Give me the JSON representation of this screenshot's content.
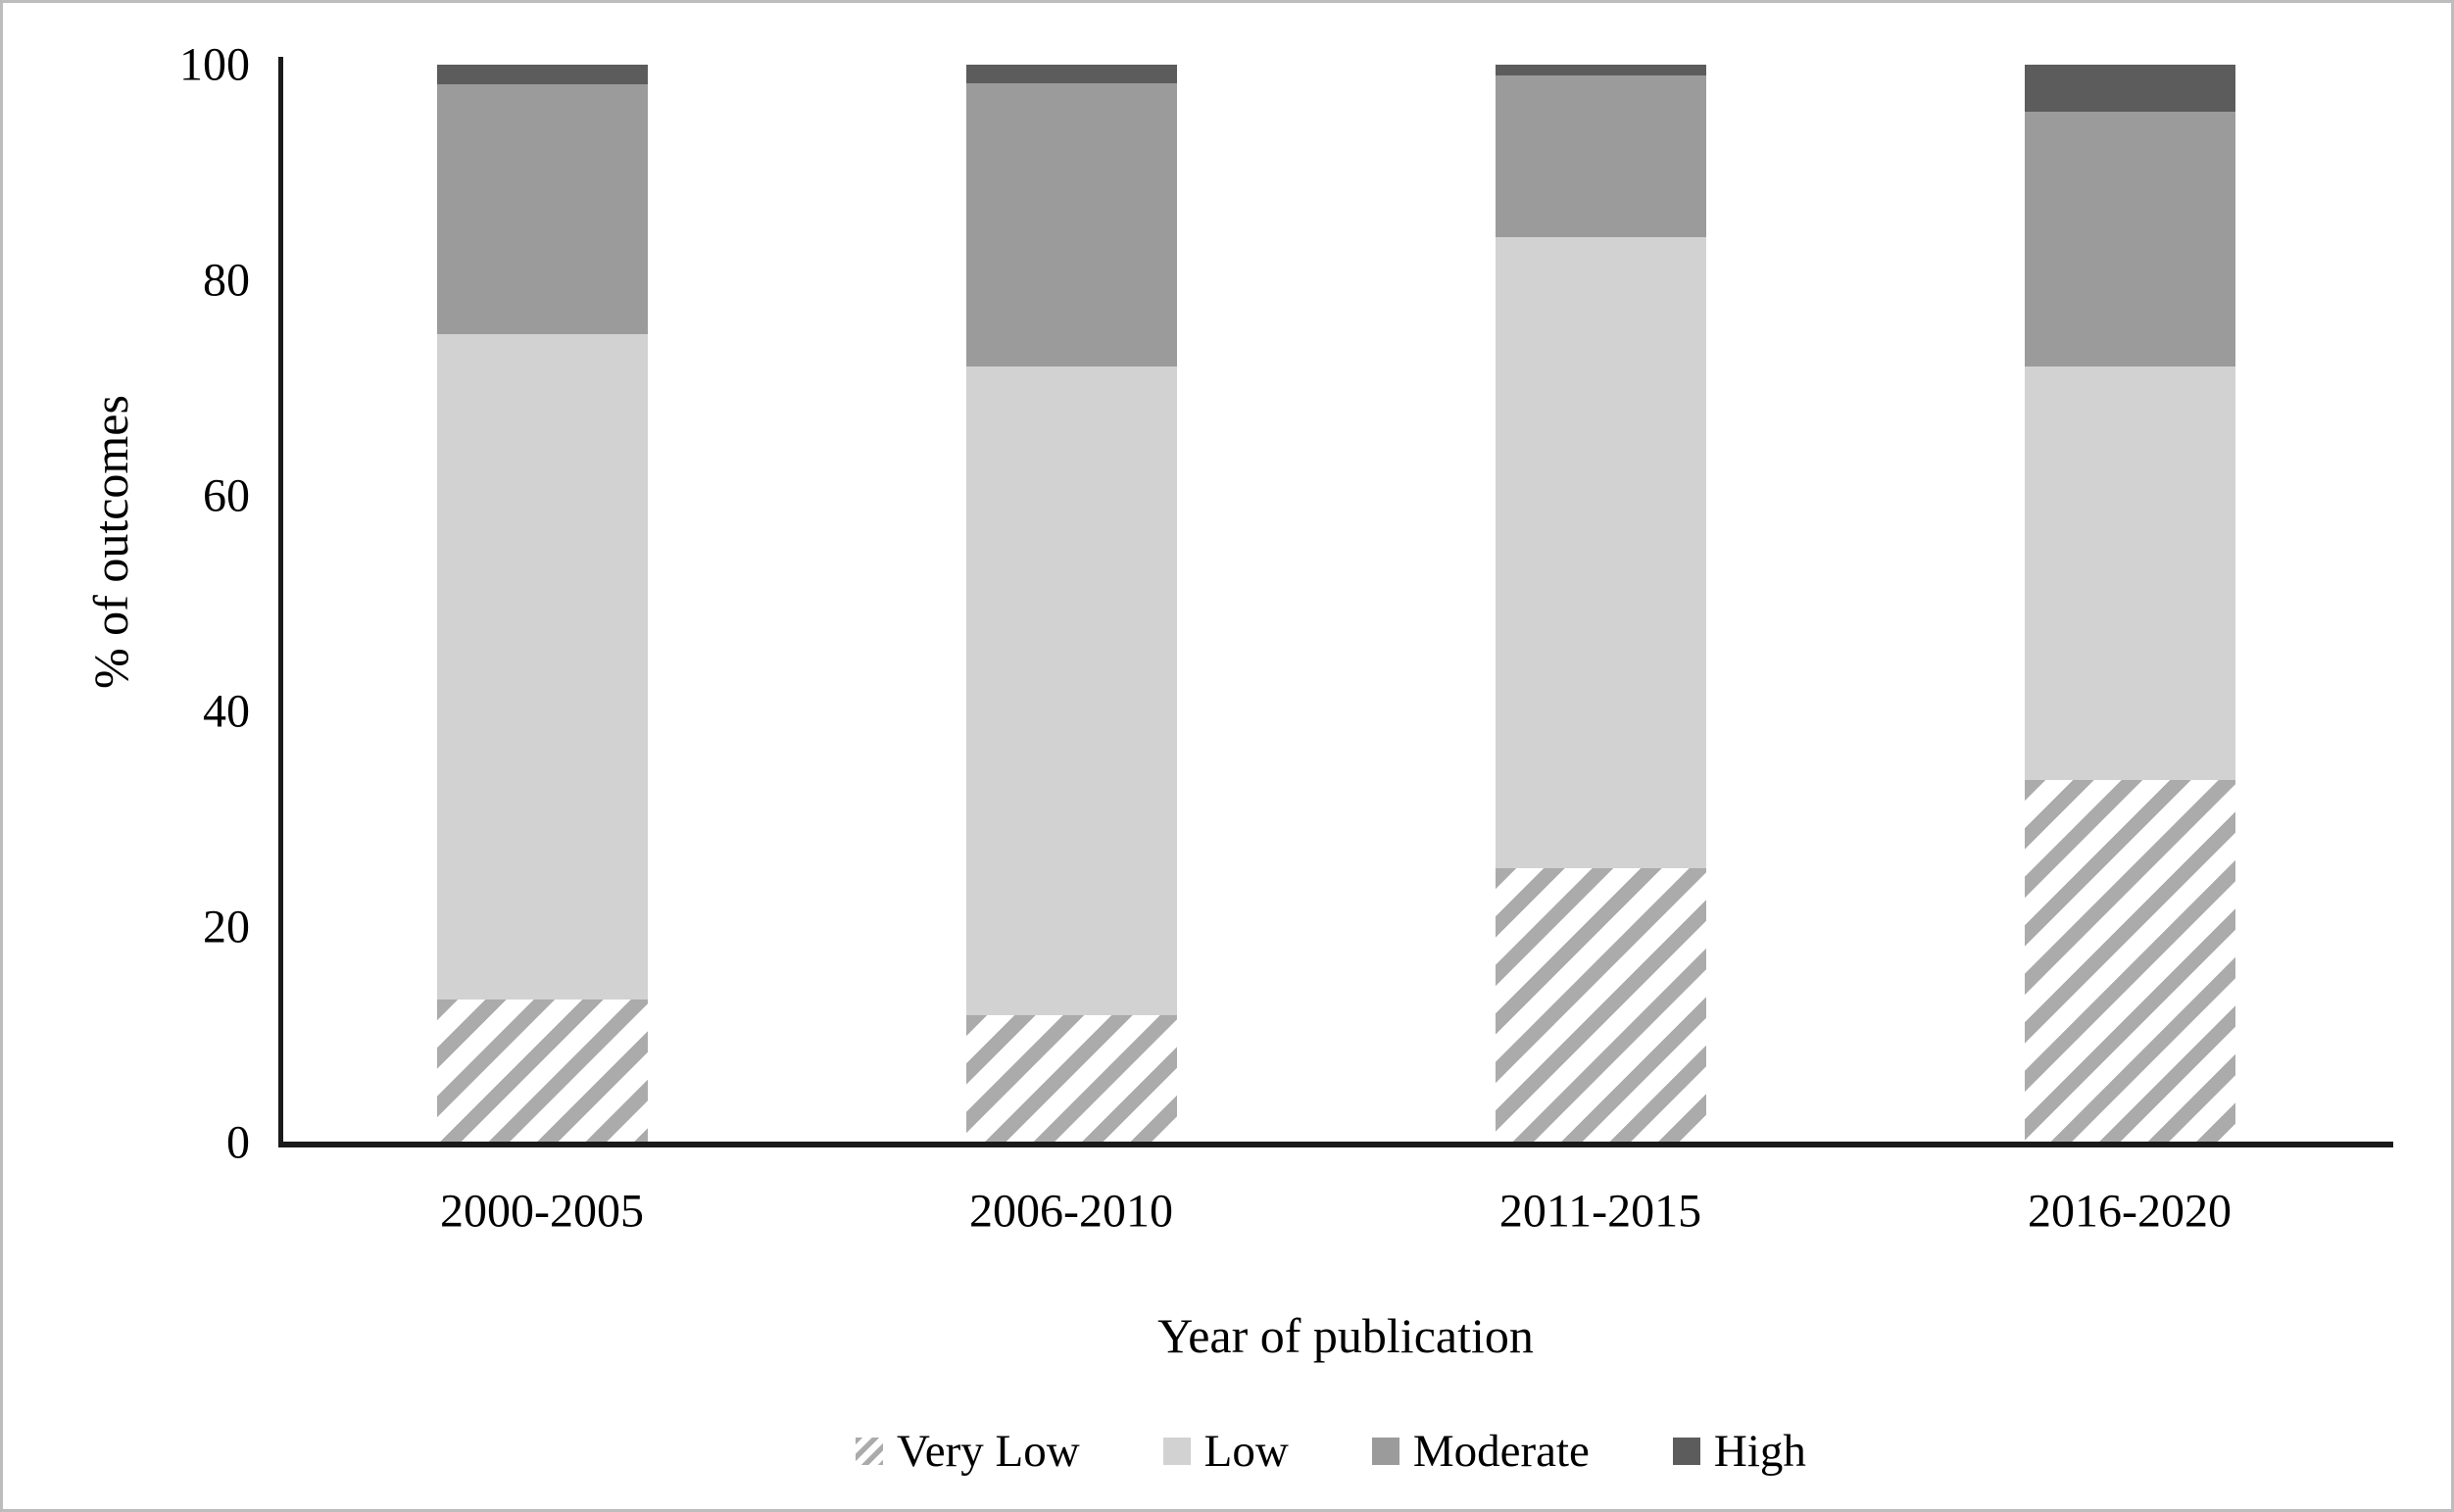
{
  "chart_data": {
    "type": "bar",
    "stacked": true,
    "percent_stacked": true,
    "categories": [
      "2000-2005",
      "2006-2010",
      "2011-2015",
      "2016-2020"
    ],
    "series": [
      {
        "name": "Very Low",
        "style": "hatched",
        "values": [
          13.3,
          11.8,
          25.5,
          33.6
        ]
      },
      {
        "name": "Low",
        "color": "#d2d2d2",
        "values": [
          61.7,
          60.2,
          58.5,
          38.4
        ]
      },
      {
        "name": "Moderate",
        "color": "#9b9b9b",
        "values": [
          23.2,
          26.3,
          15.0,
          23.6
        ]
      },
      {
        "name": "High",
        "color": "#5c5c5c",
        "values": [
          1.8,
          1.7,
          1.0,
          4.4
        ]
      }
    ],
    "xlabel": "Year of publication",
    "ylabel": "% of outcomes",
    "ylim": [
      0,
      100
    ],
    "yticks": [
      0,
      20,
      40,
      60,
      80,
      100
    ],
    "legend_position": "bottom",
    "grid": false
  },
  "colors": {
    "hatch_stripe": "#ababab",
    "hatch_background": "#ffffff",
    "axis_line": "#1a1a1a",
    "text": "#000000",
    "frame_border": "#bdbdbd",
    "background": "#ffffff"
  }
}
